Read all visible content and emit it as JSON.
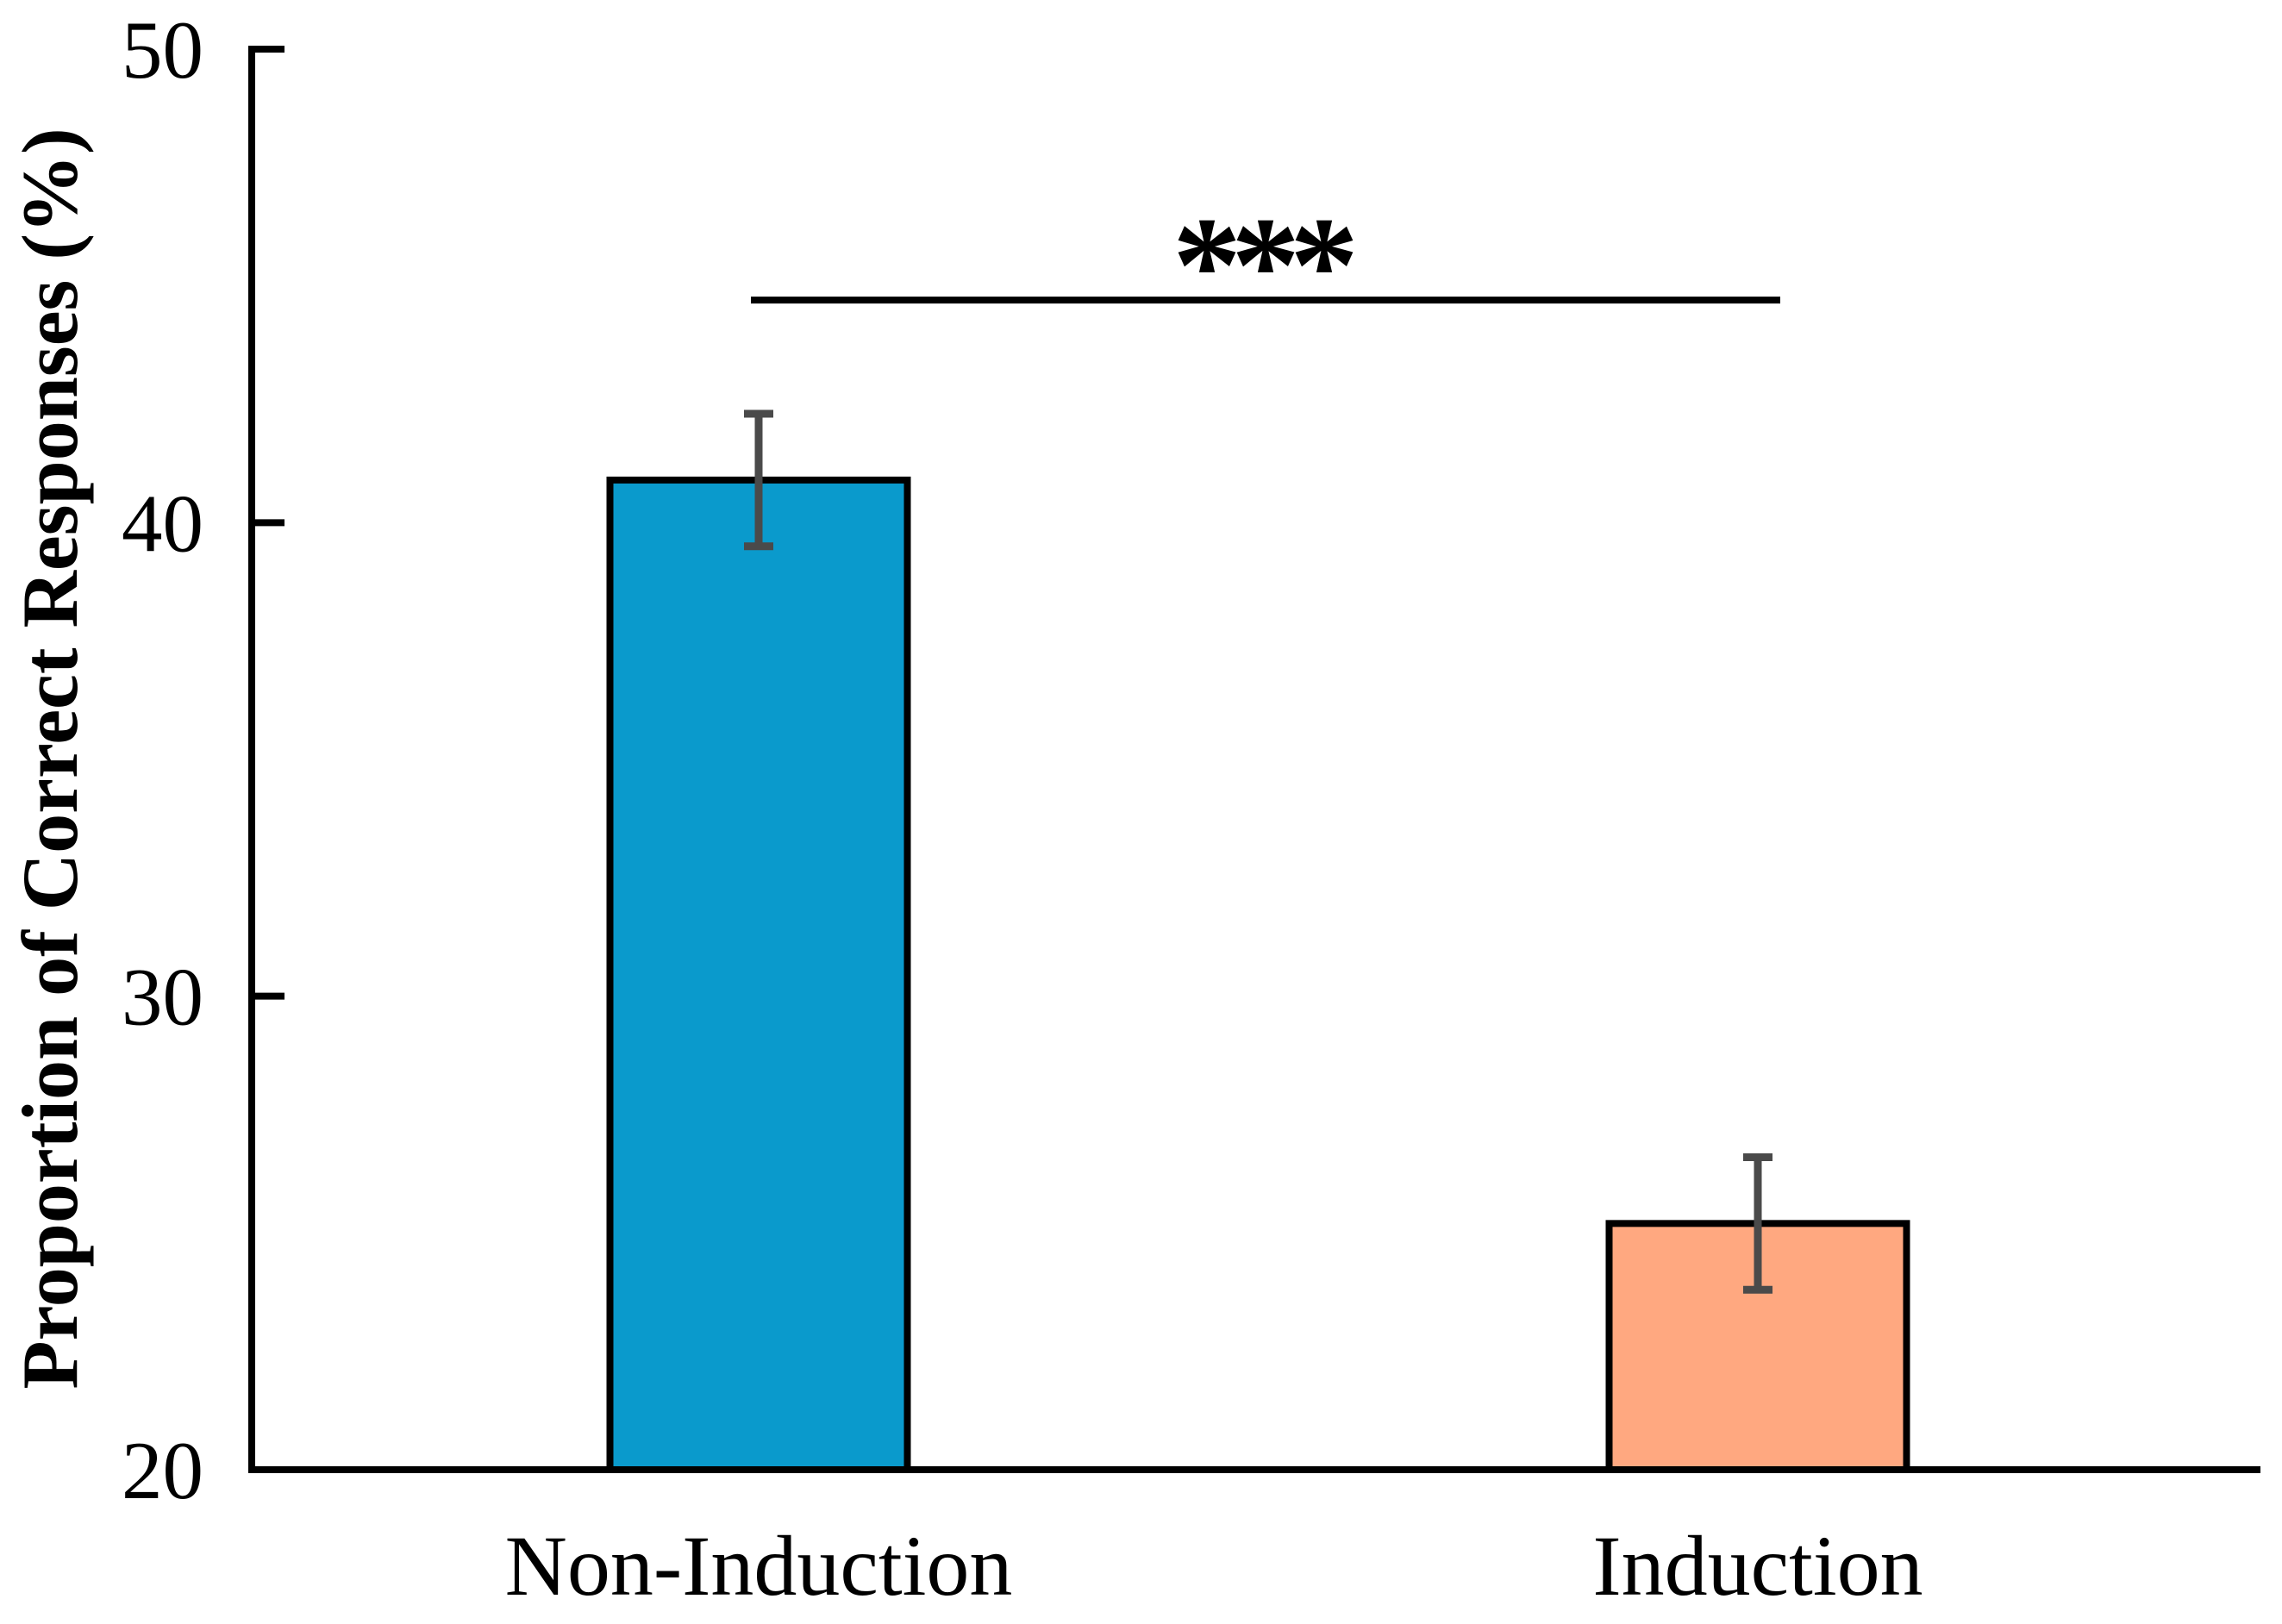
{
  "figure": {
    "background_color": "#ffffff",
    "axis_color": "#000000"
  },
  "chart_data": {
    "type": "bar",
    "title": "",
    "xlabel": "",
    "ylabel": "Proportion of Correct Responses (%)",
    "categories": [
      "Non-Induction",
      "Induction"
    ],
    "values": [
      40.9,
      25.2
    ],
    "errors_plus": [
      1.4,
      1.4
    ],
    "errors_minus": [
      1.4,
      1.4
    ],
    "ylim": [
      20,
      50
    ],
    "yticks": [
      20,
      30,
      40,
      50
    ],
    "grid": false,
    "legend": null,
    "bar_colors": [
      "#0A9ACC",
      "#FFA880"
    ],
    "bar_edge_color": "#000000",
    "error_bar_color": "#4a4a4a",
    "significance": {
      "label": "***",
      "between": [
        "Non-Induction",
        "Induction"
      ],
      "line_y_value": 44.7
    }
  }
}
